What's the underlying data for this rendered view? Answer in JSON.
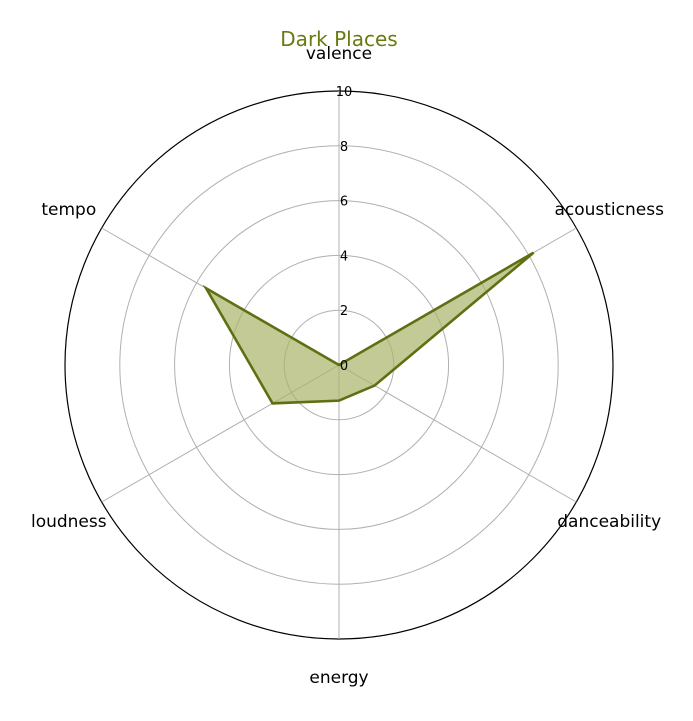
{
  "chart_data": {
    "type": "radar",
    "title": "Dark Places",
    "axes": [
      "valence",
      "acousticness",
      "danceability",
      "energy",
      "loudness",
      "tempo"
    ],
    "series": [
      {
        "values": [
          0.0,
          8.2,
          1.5,
          1.3,
          2.8,
          5.6
        ]
      }
    ],
    "rlim": [
      0,
      10
    ],
    "rticks": [
      0,
      2,
      4,
      6,
      8,
      10
    ],
    "grid": true,
    "colors": {
      "title": "#6b7a0f",
      "line": "#5e7012",
      "fill": "#a9b36a"
    }
  }
}
